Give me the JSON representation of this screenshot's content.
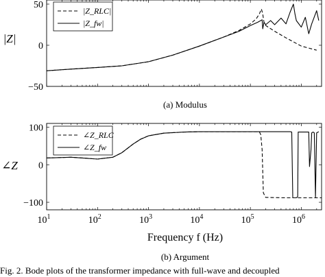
{
  "chart_data": [
    {
      "id": "modulus",
      "type": "line",
      "caption": "(a) Modulus",
      "ylabel": "|Z|",
      "xscale": "log",
      "xlim": [
        10,
        2500000
      ],
      "ylim": [
        -50,
        55
      ],
      "yticks": [
        -50,
        0,
        50
      ],
      "legend_position": "top-left",
      "series": [
        {
          "name": "|Z_RLC|",
          "style": "dashed",
          "color": "#000000",
          "x": [
            10,
            30,
            100,
            300,
            1000,
            3000,
            10000,
            30000,
            60000,
            100000,
            130000,
            150000,
            165000,
            175000,
            185000,
            200000,
            300000,
            500000,
            1000000,
            2000000
          ],
          "y": [
            -31,
            -29,
            -27,
            -25,
            -20,
            -12,
            -1,
            10,
            18,
            26,
            32,
            38,
            44,
            38,
            28,
            24,
            17,
            9,
            -1,
            -6
          ]
        },
        {
          "name": "|Z_fw|",
          "style": "solid",
          "color": "#000000",
          "x": [
            10,
            30,
            100,
            300,
            1000,
            3000,
            10000,
            30000,
            60000,
            100000,
            140000,
            170000,
            175000,
            185000,
            200000,
            250000,
            300000,
            400000,
            500000,
            600000,
            700000,
            750000,
            800000,
            1000000,
            1200000,
            1400000,
            1600000,
            2000000,
            2200000
          ],
          "y": [
            -31,
            -29,
            -27,
            -25,
            -20,
            -12,
            -1,
            10,
            17,
            24,
            28,
            31,
            20,
            28,
            25,
            30,
            25,
            33,
            26,
            40,
            50,
            38,
            30,
            22,
            34,
            14,
            26,
            42,
            30
          ]
        }
      ]
    },
    {
      "id": "argument",
      "type": "line",
      "caption": "(b) Argument",
      "ylabel": "∠Z",
      "xlabel": "Frequency f (Hz)",
      "xscale": "log",
      "xlim": [
        10,
        2500000
      ],
      "ylim": [
        -120,
        110
      ],
      "yticks": [
        -100,
        0,
        100
      ],
      "xticks": [
        10,
        100,
        1000,
        10000,
        100000,
        1000000
      ],
      "legend_position": "top-left",
      "series": [
        {
          "name": "∠Z_RLC",
          "style": "dashed",
          "color": "#000000",
          "x": [
            10,
            30,
            50,
            100,
            200,
            300,
            500,
            700,
            1000,
            2000,
            5000,
            10000,
            100000,
            150000,
            160000,
            170000,
            180000,
            200000,
            500000,
            1000000,
            2500000
          ],
          "y": [
            18,
            20,
            18,
            15,
            20,
            32,
            55,
            68,
            77,
            84,
            87,
            88,
            88,
            88,
            80,
            40,
            -75,
            -87,
            -88,
            -88,
            -88
          ]
        },
        {
          "name": "∠Z_fw",
          "style": "solid",
          "color": "#000000",
          "x": [
            10,
            30,
            50,
            100,
            200,
            300,
            500,
            700,
            1000,
            2000,
            5000,
            10000,
            100000,
            600000,
            650000,
            680000,
            700000,
            750000,
            800000,
            850000,
            870000,
            1000000,
            1400000,
            1450000,
            1550000,
            1600000,
            1700000,
            1800000,
            1900000,
            2000000,
            2200000
          ],
          "y": [
            18,
            20,
            18,
            15,
            20,
            32,
            55,
            68,
            77,
            84,
            87,
            88,
            88,
            88,
            87,
            -88,
            -88,
            -88,
            -88,
            -85,
            87,
            87,
            87,
            -5,
            40,
            85,
            87,
            85,
            -87,
            85,
            88
          ]
        }
      ]
    }
  ],
  "figure_caption": "Fig. 2.  Bode plots of the transformer impedance with full-wave and decoupled"
}
